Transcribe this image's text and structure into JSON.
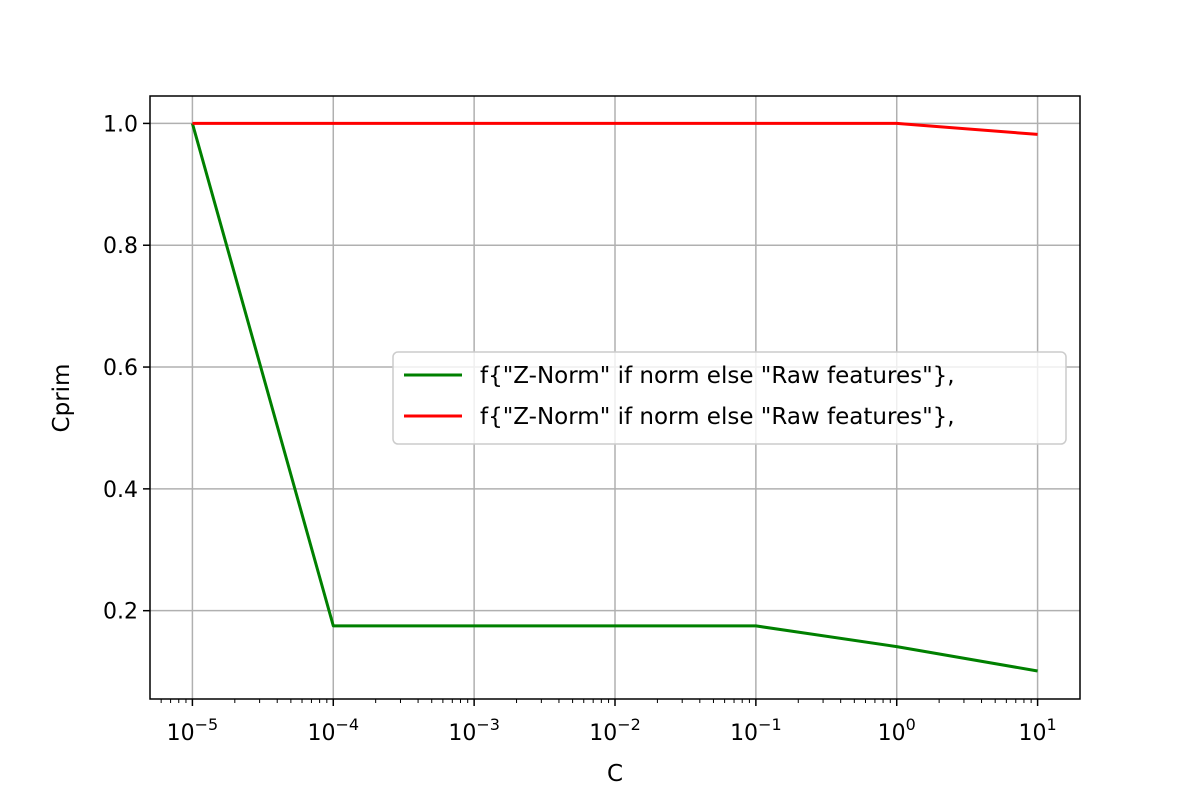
{
  "chart_data": {
    "type": "line",
    "xscale": "log",
    "x": [
      1e-05,
      0.0001,
      0.001,
      0.01,
      0.1,
      1,
      10
    ],
    "xlim": [
      5e-06,
      20
    ],
    "ylim": [
      0.055,
      1.045
    ],
    "xlabel": "C",
    "ylabel": "Cprim",
    "grid": true,
    "legend_position": "center-right",
    "x_ticks": [
      {
        "value": 1e-05,
        "base": "10",
        "exp": "−5"
      },
      {
        "value": 0.0001,
        "base": "10",
        "exp": "−4"
      },
      {
        "value": 0.001,
        "base": "10",
        "exp": "−3"
      },
      {
        "value": 0.01,
        "base": "10",
        "exp": "−2"
      },
      {
        "value": 0.1,
        "base": "10",
        "exp": "−1"
      },
      {
        "value": 1,
        "base": "10",
        "exp": "0"
      },
      {
        "value": 10,
        "base": "10",
        "exp": "1"
      }
    ],
    "y_ticks": [
      {
        "value": 0.2,
        "label": "0.2"
      },
      {
        "value": 0.4,
        "label": "0.4"
      },
      {
        "value": 0.6,
        "label": "0.6"
      },
      {
        "value": 0.8,
        "label": "0.8"
      },
      {
        "value": 1.0,
        "label": "1.0"
      }
    ],
    "series": [
      {
        "name": "f{\"Z-Norm\" if norm else \"Raw features\"},",
        "color": "#008000",
        "values": [
          1.0,
          0.175,
          0.175,
          0.175,
          0.175,
          0.141,
          0.101
        ]
      },
      {
        "name": "f{\"Z-Norm\" if norm else \"Raw features\"},",
        "color": "#ff0000",
        "values": [
          1.0,
          1.0,
          1.0,
          1.0,
          1.0,
          1.0,
          0.982
        ]
      }
    ]
  }
}
